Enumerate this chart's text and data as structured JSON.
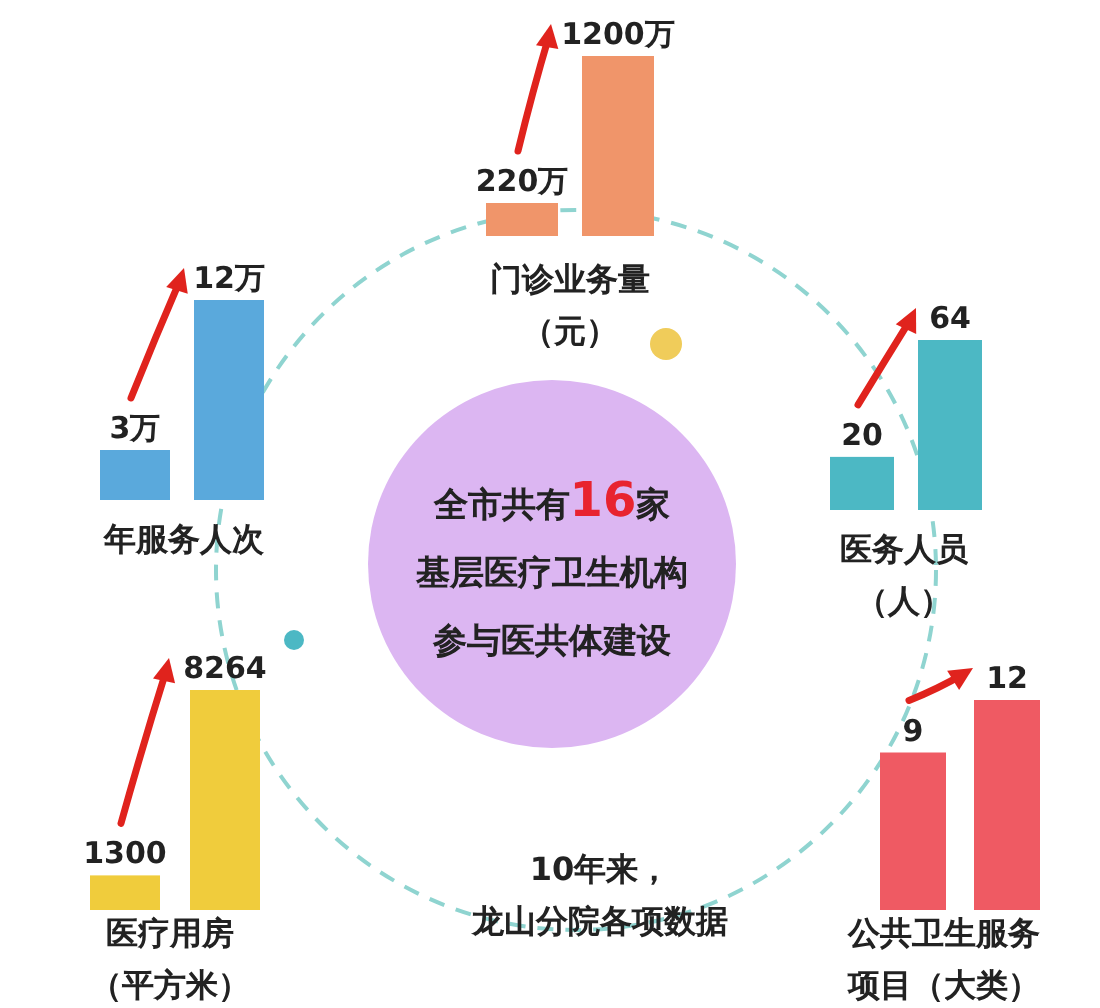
{
  "chart_data": [
    {
      "type": "other",
      "title": "全市共有16家基层医疗卫生机构参与医共体建设",
      "annotations": [
        "10年来，龙山分院各项数据"
      ]
    },
    {
      "type": "bar",
      "xlabel": "门诊业务量（元）",
      "categories": [
        null,
        null
      ],
      "values": [
        220,
        1200
      ],
      "value_labels": [
        "220万",
        "1200万"
      ],
      "color": "#f0956a"
    },
    {
      "type": "bar",
      "xlabel": "年服务人次",
      "categories": [
        null,
        null
      ],
      "values": [
        3,
        12
      ],
      "value_labels": [
        "3万",
        "12万"
      ],
      "color": "#5aa9dc"
    },
    {
      "type": "bar",
      "xlabel": "医务人员（人）",
      "categories": [
        null,
        null
      ],
      "values": [
        20,
        64
      ],
      "data_labels": true,
      "color": "#4cb8c4"
    },
    {
      "type": "bar",
      "xlabel": "医疗用房（平方米）",
      "categories": [
        null,
        null
      ],
      "values": [
        1300,
        8264
      ],
      "data_labels": true,
      "color": "#f0cc3c"
    },
    {
      "type": "bar",
      "xlabel": "公共卫生服务项目（大类）",
      "categories": [
        null,
        null
      ],
      "values": [
        9,
        12
      ],
      "data_labels": true,
      "color": "#ef5a63"
    }
  ]
}
